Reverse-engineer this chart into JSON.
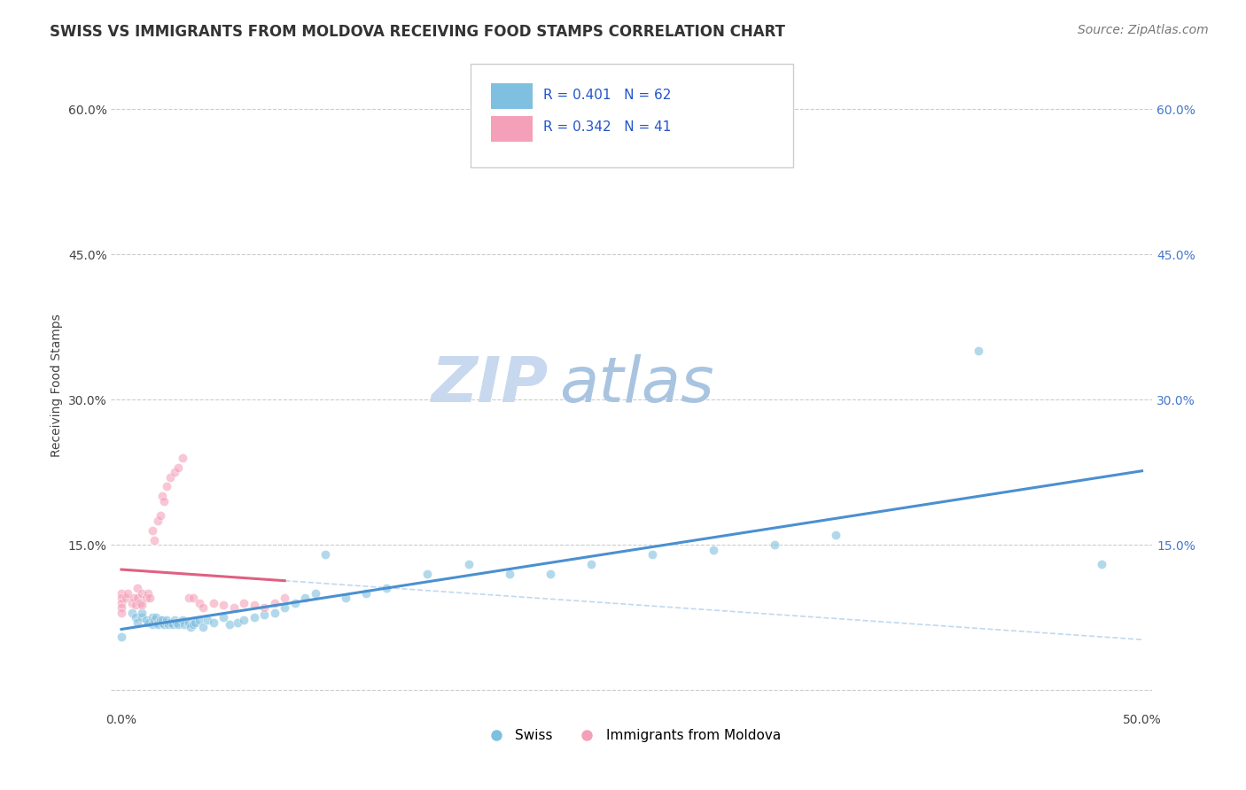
{
  "title": "SWISS VS IMMIGRANTS FROM MOLDOVA RECEIVING FOOD STAMPS CORRELATION CHART",
  "source": "Source: ZipAtlas.com",
  "ylabel": "Receiving Food Stamps",
  "xlim": [
    -0.005,
    0.505
  ],
  "ylim": [
    -0.02,
    0.65
  ],
  "xticks": [
    0.0,
    0.1,
    0.2,
    0.3,
    0.4,
    0.5
  ],
  "xtick_labels": [
    "0.0%",
    "",
    "",
    "",
    "",
    "50.0%"
  ],
  "yticks": [
    0.0,
    0.15,
    0.3,
    0.45,
    0.6
  ],
  "ytick_labels": [
    "",
    "15.0%",
    "30.0%",
    "45.0%",
    "60.0%"
  ],
  "swiss_color": "#7fbfdf",
  "moldova_color": "#f4a0b8",
  "trend_swiss_color": "#4a90d0",
  "trend_moldova_color": "#e06080",
  "trend_swiss_dashed_color": "#c0d8f0",
  "swiss_R": 0.401,
  "swiss_N": 62,
  "moldova_R": 0.342,
  "moldova_N": 41,
  "watermark_zip": "ZIP",
  "watermark_atlas": "atlas",
  "swiss_x": [
    0.0,
    0.005,
    0.007,
    0.008,
    0.01,
    0.01,
    0.012,
    0.013,
    0.015,
    0.015,
    0.016,
    0.017,
    0.018,
    0.018,
    0.019,
    0.02,
    0.02,
    0.021,
    0.022,
    0.022,
    0.023,
    0.024,
    0.025,
    0.026,
    0.027,
    0.028,
    0.03,
    0.031,
    0.033,
    0.034,
    0.035,
    0.036,
    0.038,
    0.04,
    0.042,
    0.045,
    0.05,
    0.053,
    0.057,
    0.06,
    0.065,
    0.07,
    0.075,
    0.08,
    0.085,
    0.09,
    0.095,
    0.1,
    0.11,
    0.12,
    0.13,
    0.15,
    0.17,
    0.19,
    0.21,
    0.23,
    0.26,
    0.29,
    0.32,
    0.35,
    0.42,
    0.48
  ],
  "swiss_y": [
    0.055,
    0.08,
    0.075,
    0.07,
    0.075,
    0.08,
    0.072,
    0.07,
    0.075,
    0.068,
    0.072,
    0.075,
    0.07,
    0.068,
    0.072,
    0.07,
    0.072,
    0.068,
    0.07,
    0.072,
    0.068,
    0.07,
    0.068,
    0.072,
    0.07,
    0.068,
    0.072,
    0.068,
    0.07,
    0.065,
    0.068,
    0.07,
    0.072,
    0.065,
    0.072,
    0.07,
    0.075,
    0.068,
    0.07,
    0.072,
    0.075,
    0.078,
    0.08,
    0.085,
    0.09,
    0.095,
    0.1,
    0.14,
    0.095,
    0.1,
    0.105,
    0.12,
    0.13,
    0.12,
    0.12,
    0.13,
    0.14,
    0.145,
    0.15,
    0.16,
    0.35,
    0.13
  ],
  "moldova_x": [
    0.0,
    0.0,
    0.0,
    0.0,
    0.0,
    0.002,
    0.003,
    0.005,
    0.006,
    0.007,
    0.008,
    0.008,
    0.009,
    0.01,
    0.01,
    0.012,
    0.013,
    0.014,
    0.015,
    0.016,
    0.018,
    0.019,
    0.02,
    0.021,
    0.022,
    0.024,
    0.026,
    0.028,
    0.03,
    0.033,
    0.035,
    0.038,
    0.04,
    0.045,
    0.05,
    0.055,
    0.06,
    0.065,
    0.07,
    0.075,
    0.08
  ],
  "moldova_y": [
    0.1,
    0.095,
    0.09,
    0.085,
    0.08,
    0.095,
    0.1,
    0.09,
    0.095,
    0.088,
    0.105,
    0.095,
    0.09,
    0.1,
    0.088,
    0.095,
    0.1,
    0.095,
    0.165,
    0.155,
    0.175,
    0.18,
    0.2,
    0.195,
    0.21,
    0.22,
    0.225,
    0.23,
    0.24,
    0.095,
    0.095,
    0.09,
    0.085,
    0.09,
    0.088,
    0.085,
    0.09,
    0.088,
    0.085,
    0.09,
    0.095
  ],
  "bottom_legend_swiss": "Swiss",
  "bottom_legend_moldova": "Immigrants from Moldova",
  "title_fontsize": 12,
  "source_fontsize": 10,
  "axis_label_fontsize": 10,
  "tick_fontsize": 10,
  "legend_fontsize": 11,
  "watermark_fontsize_zip": 52,
  "watermark_fontsize_atlas": 52,
  "watermark_color_zip": "#c8d8ee",
  "watermark_color_atlas": "#a8c4e0",
  "background_color": "#ffffff",
  "grid_color": "#cccccc",
  "grid_linestyle": "--",
  "scatter_size": 55,
  "scatter_alpha": 0.6
}
